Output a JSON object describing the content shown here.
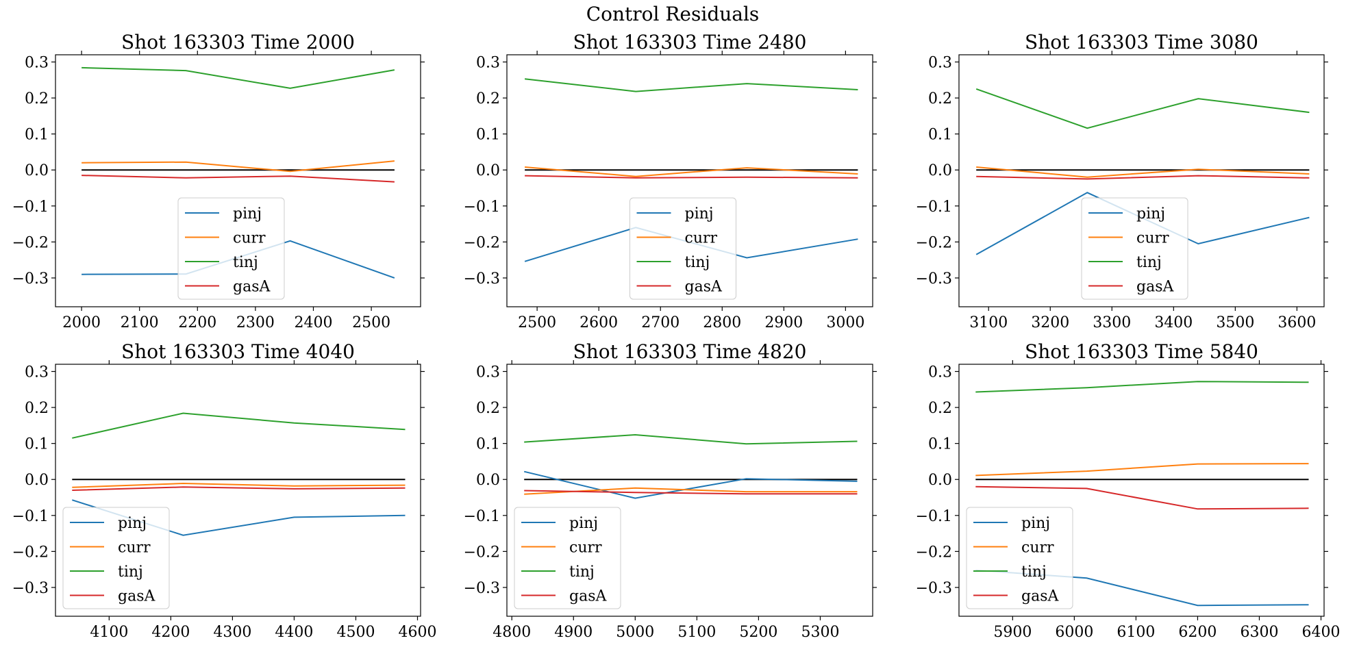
{
  "figure": {
    "suptitle": "Control Residuals"
  },
  "colors": {
    "pinj": "#1f77b4",
    "curr": "#ff7f0e",
    "tinj": "#2ca02c",
    "gasA": "#d62728",
    "zero": "#000000"
  },
  "chart_data": [
    {
      "type": "line",
      "title": "Shot 163303   Time 2000",
      "x": [
        2000,
        2180,
        2360,
        2540
      ],
      "xlim": [
        1955,
        2585
      ],
      "xticks": [
        2000,
        2100,
        2200,
        2300,
        2400,
        2500
      ],
      "ylim": [
        -0.38,
        0.32
      ],
      "yticks": [
        -0.3,
        -0.2,
        -0.1,
        0.0,
        0.1,
        0.2,
        0.3
      ],
      "legend_placement": "lower center",
      "series": [
        {
          "name": "pinj",
          "values": [
            -0.29,
            -0.289,
            -0.197,
            -0.3
          ]
        },
        {
          "name": "curr",
          "values": [
            0.02,
            0.022,
            -0.004,
            0.025
          ]
        },
        {
          "name": "tinj",
          "values": [
            0.284,
            0.276,
            0.227,
            0.278
          ]
        },
        {
          "name": "gasA",
          "values": [
            -0.015,
            -0.022,
            -0.017,
            -0.033
          ]
        }
      ]
    },
    {
      "type": "line",
      "title": "Shot 163303   Time 2480",
      "x": [
        2480,
        2660,
        2840,
        3020
      ],
      "xlim": [
        2451,
        3044
      ],
      "xticks": [
        2500,
        2600,
        2700,
        2800,
        2900,
        3000
      ],
      "ylim": [
        -0.38,
        0.32
      ],
      "yticks": [
        -0.3,
        -0.2,
        -0.1,
        0.0,
        0.1,
        0.2,
        0.3
      ],
      "legend_placement": "lower center",
      "series": [
        {
          "name": "pinj",
          "values": [
            -0.254,
            -0.16,
            -0.244,
            -0.192
          ]
        },
        {
          "name": "curr",
          "values": [
            0.008,
            -0.018,
            0.006,
            -0.011
          ]
        },
        {
          "name": "tinj",
          "values": [
            0.253,
            0.218,
            0.24,
            0.223
          ]
        },
        {
          "name": "gasA",
          "values": [
            -0.016,
            -0.022,
            -0.02,
            -0.022
          ]
        }
      ]
    },
    {
      "type": "line",
      "title": "Shot 163303   Time 3080",
      "x": [
        3080,
        3260,
        3440,
        3620
      ],
      "xlim": [
        3052,
        3644
      ],
      "xticks": [
        3100,
        3200,
        3300,
        3400,
        3500,
        3600
      ],
      "ylim": [
        -0.38,
        0.32
      ],
      "yticks": [
        -0.3,
        -0.2,
        -0.1,
        0.0,
        0.1,
        0.2,
        0.3
      ],
      "legend_placement": "lower center",
      "series": [
        {
          "name": "pinj",
          "values": [
            -0.235,
            -0.063,
            -0.205,
            -0.132
          ]
        },
        {
          "name": "curr",
          "values": [
            0.008,
            -0.02,
            0.002,
            -0.011
          ]
        },
        {
          "name": "tinj",
          "values": [
            0.225,
            0.116,
            0.198,
            0.16
          ]
        },
        {
          "name": "gasA",
          "values": [
            -0.018,
            -0.025,
            -0.016,
            -0.022
          ]
        }
      ]
    },
    {
      "type": "line",
      "title": "Shot 163303   Time 4040",
      "x": [
        4040,
        4220,
        4400,
        4580
      ],
      "xlim": [
        4013,
        4605
      ],
      "xticks": [
        4100,
        4200,
        4300,
        4400,
        4500,
        4600
      ],
      "ylim": [
        -0.38,
        0.32
      ],
      "yticks": [
        -0.3,
        -0.2,
        -0.1,
        0.0,
        0.1,
        0.2,
        0.3
      ],
      "legend_placement": "lower left",
      "series": [
        {
          "name": "pinj",
          "values": [
            -0.057,
            -0.155,
            -0.105,
            -0.1
          ]
        },
        {
          "name": "curr",
          "values": [
            -0.022,
            -0.011,
            -0.018,
            -0.016
          ]
        },
        {
          "name": "tinj",
          "values": [
            0.115,
            0.184,
            0.157,
            0.139
          ]
        },
        {
          "name": "gasA",
          "values": [
            -0.03,
            -0.021,
            -0.026,
            -0.024
          ]
        }
      ]
    },
    {
      "type": "line",
      "title": "Shot 163303   Time 4820",
      "x": [
        4820,
        5000,
        5180,
        5360
      ],
      "xlim": [
        4792,
        5385
      ],
      "xticks": [
        4800,
        4900,
        5000,
        5100,
        5200,
        5300
      ],
      "ylim": [
        -0.38,
        0.32
      ],
      "yticks": [
        -0.3,
        -0.2,
        -0.1,
        0.0,
        0.1,
        0.2,
        0.3
      ],
      "legend_placement": "lower left",
      "series": [
        {
          "name": "pinj",
          "values": [
            0.022,
            -0.052,
            0.002,
            -0.005
          ]
        },
        {
          "name": "curr",
          "values": [
            -0.041,
            -0.024,
            -0.034,
            -0.034
          ]
        },
        {
          "name": "tinj",
          "values": [
            0.104,
            0.124,
            0.099,
            0.106
          ]
        },
        {
          "name": "gasA",
          "values": [
            -0.031,
            -0.036,
            -0.04,
            -0.04
          ]
        }
      ]
    },
    {
      "type": "line",
      "title": "Shot 163303   Time 5840",
      "x": [
        5840,
        6020,
        6200,
        6380
      ],
      "xlim": [
        5813,
        6405
      ],
      "xticks": [
        5900,
        6000,
        6100,
        6200,
        6300,
        6400
      ],
      "ylim": [
        -0.38,
        0.32
      ],
      "yticks": [
        -0.3,
        -0.2,
        -0.1,
        0.0,
        0.1,
        0.2,
        0.3
      ],
      "legend_placement": "lower left",
      "series": [
        {
          "name": "pinj",
          "values": [
            -0.252,
            -0.274,
            -0.35,
            -0.348
          ]
        },
        {
          "name": "curr",
          "values": [
            0.011,
            0.023,
            0.043,
            0.044
          ]
        },
        {
          "name": "tinj",
          "values": [
            0.243,
            0.255,
            0.272,
            0.27
          ]
        },
        {
          "name": "gasA",
          "values": [
            -0.02,
            -0.025,
            -0.082,
            -0.08
          ]
        }
      ]
    }
  ]
}
